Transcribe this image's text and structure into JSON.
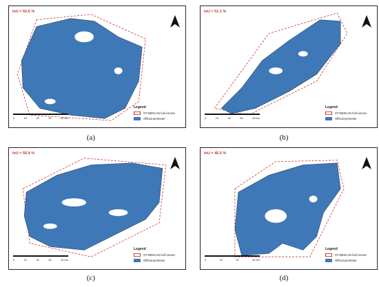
{
  "panels": [
    {
      "caption": "(a)",
      "iou": "IoU = 62.6 %",
      "scale": [
        "0",
        "10",
        "20",
        "30",
        "40 km"
      ]
    },
    {
      "caption": "(b)",
      "iou": "IoU = 51.1 %",
      "scale": [
        "0",
        "10",
        "20",
        "30",
        "40 km"
      ]
    },
    {
      "caption": "(c)",
      "iou": "IoU = 55.9 %",
      "scale": [
        "0",
        "10",
        "20",
        "30",
        "40 km"
      ]
    },
    {
      "caption": "(d)",
      "iou": "IoU = 45.5 %",
      "scale": [
        "0",
        "10",
        "20",
        "30 km"
      ]
    }
  ],
  "legend": {
    "title": "Legend",
    "hull": "ST-DBSCAN hull convex",
    "perimeter": "Official perimeter"
  },
  "colors": {
    "perimeter_fill": "#3f78b6",
    "hull_stroke": "#d0302a",
    "iou_text": "#c0392b"
  }
}
